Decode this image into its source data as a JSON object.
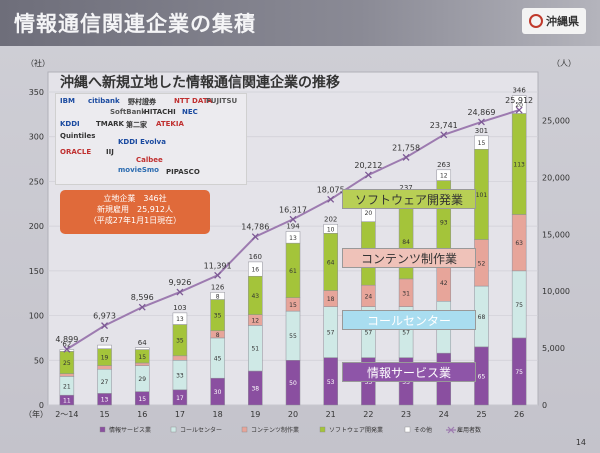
{
  "header": {
    "title": "情報通信関連企業の集積",
    "logo_text": "沖縄県"
  },
  "subtitle": "沖縄へ新規立地した情報通信関連企業の推移",
  "info_box": {
    "line1": "立地企業　346社",
    "line2": "新規雇用　25,912人",
    "line3": "（平成27年1月1日現在）"
  },
  "company_logos": [
    "IBM",
    "citibank",
    "野村證券",
    "NTT DATA",
    "FUJITSU",
    "NEC",
    "HITACHI",
    "SoftBank",
    "KDDI",
    "TMARK",
    "第二家",
    "ATEKIA",
    "Quintiles",
    "KDDI Evolva",
    "ORACLE",
    "IIJ",
    "Calbee",
    "PIPASCO",
    "movieSmo"
  ],
  "segment_labels": {
    "software": "ソフトウェア開発業",
    "contents": "コンテンツ制作業",
    "callcenter": "コールセンター",
    "infoservice": "情報サービス業"
  },
  "page_number": "14",
  "chart_data": {
    "type": "bar",
    "categories": [
      "2～14",
      "15",
      "16",
      "17",
      "18",
      "19",
      "20",
      "21",
      "22",
      "23",
      "24",
      "25",
      "26"
    ],
    "left_axis_unit": "（社）",
    "right_axis_unit": "（人）",
    "x_axis_unit": "（年）",
    "left_ylim": [
      0,
      350
    ],
    "left_ticks": [
      0,
      50,
      100,
      150,
      200,
      250,
      300,
      350
    ],
    "right_ylim": [
      0,
      27500
    ],
    "right_ticks": [
      0,
      5000,
      10000,
      15000,
      20000,
      25000
    ],
    "series": [
      {
        "name": "情報サービス業",
        "color": "#8a4fa0",
        "values": [
          11,
          13,
          15,
          17,
          30,
          38,
          50,
          53,
          53,
          53,
          58,
          65,
          75
        ]
      },
      {
        "name": "コールセンター",
        "color": "#cfe9e6",
        "values": [
          21,
          27,
          29,
          33,
          45,
          51,
          55,
          57,
          57,
          57,
          58,
          68,
          75
        ]
      },
      {
        "name": "コンテンツ制作業",
        "color": "#e7a59a",
        "values": [
          3,
          4,
          3,
          5,
          8,
          12,
          15,
          18,
          24,
          31,
          42,
          52,
          63
        ]
      },
      {
        "name": "ソフトウェア開発業",
        "color": "#a4c43a",
        "values": [
          25,
          19,
          15,
          35,
          35,
          43,
          61,
          64,
          71,
          84,
          93,
          101,
          113
        ]
      },
      {
        "name": "その他",
        "color": "#ffffff",
        "values": [
          2,
          4,
          2,
          13,
          8,
          16,
          13,
          10,
          20,
          12,
          12,
          15,
          20
        ]
      }
    ],
    "totals": [
      62,
      67,
      64,
      103,
      126,
      160,
      194,
      202,
      225,
      237,
      263,
      301,
      346
    ],
    "employment": {
      "name": "雇用者数",
      "color": "#9d7bb0",
      "values": [
        4899,
        6973,
        8596,
        9926,
        11391,
        14786,
        16317,
        18075,
        20212,
        21758,
        23741,
        24869,
        25912
      ],
      "labels": [
        "4,899",
        "6,973",
        "8,596",
        "9,926",
        "11,391",
        "14,786",
        "16,317",
        "18,075",
        "20,212",
        "21,758",
        "23,741",
        "24,869",
        "25,912"
      ]
    },
    "legend": [
      "情報サービス業",
      "コールセンター",
      "コンテンツ制作業",
      "ソフトウェア開発業",
      "その他",
      "雇用者数"
    ]
  }
}
